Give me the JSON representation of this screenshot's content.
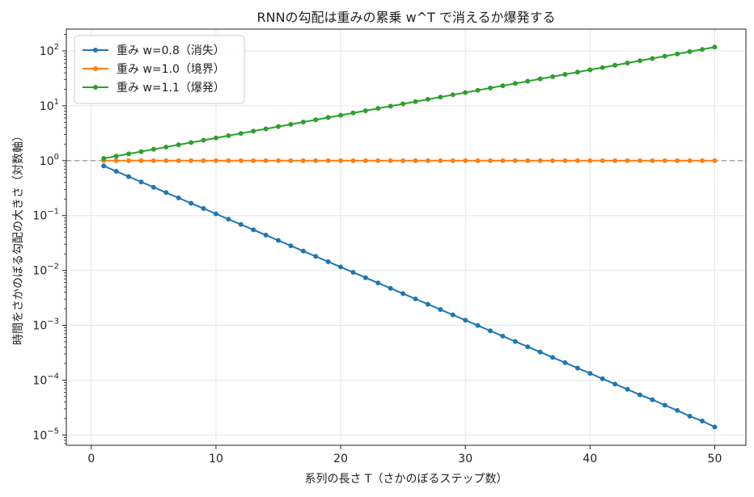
{
  "chart_data": {
    "type": "line",
    "title": "RNNの勾配は重みの累乗 w^T で消えるか爆発する",
    "xlabel": "系列の長さ T（さかのぼるステップ数）",
    "ylabel": "時間をさかのぼる勾配の大きさ（対数軸）",
    "xscale": "linear",
    "yscale": "log",
    "xlim": [
      -2,
      52.5
    ],
    "ylim": [
      6.5e-06,
      250
    ],
    "xticks": [
      0,
      10,
      20,
      30,
      40,
      50
    ],
    "xtick_labels": [
      "0",
      "10",
      "20",
      "30",
      "40",
      "50"
    ],
    "yticks": [
      1e-05,
      0.0001,
      0.001,
      0.01,
      0.1,
      1,
      10,
      100
    ],
    "ytick_labels": [
      {
        "base": "10",
        "exp": "−5"
      },
      {
        "base": "10",
        "exp": "−4"
      },
      {
        "base": "10",
        "exp": "−3"
      },
      {
        "base": "10",
        "exp": "−2"
      },
      {
        "base": "10",
        "exp": "−1"
      },
      {
        "base": "10",
        "exp": "0"
      },
      {
        "base": "10",
        "exp": "1"
      },
      {
        "base": "10",
        "exp": "2"
      }
    ],
    "grid": true,
    "legend_position": "top-left",
    "reference_line": {
      "y": 1,
      "style": "dashed",
      "color": "#aaaaaa"
    },
    "x": [
      1,
      2,
      3,
      4,
      5,
      6,
      7,
      8,
      9,
      10,
      11,
      12,
      13,
      14,
      15,
      16,
      17,
      18,
      19,
      20,
      21,
      22,
      23,
      24,
      25,
      26,
      27,
      28,
      29,
      30,
      31,
      32,
      33,
      34,
      35,
      36,
      37,
      38,
      39,
      40,
      41,
      42,
      43,
      44,
      45,
      46,
      47,
      48,
      49,
      50
    ],
    "series": [
      {
        "name": "重み w=0.8（消失）",
        "base": 0.8,
        "color": "#1f77b4",
        "values": [
          0.8,
          0.64,
          0.512,
          0.4096,
          0.32768,
          0.262144,
          0.209715,
          0.167772,
          0.134218,
          0.107374,
          0.085899,
          0.068719,
          0.054976,
          0.04398,
          0.035184,
          0.028147,
          0.022518,
          0.018014,
          0.014412,
          0.011529,
          0.009223,
          0.007379,
          0.005903,
          0.004722,
          0.003778,
          0.003022,
          0.002418,
          0.001934,
          0.001547,
          0.001238,
          0.00099,
          0.000792,
          0.000634,
          0.000507,
          0.000406,
          0.000325,
          0.00026,
          0.000208,
          0.000166,
          0.000133,
          0.000106,
          8.5e-05,
          6.8e-05,
          5.4e-05,
          4.4e-05,
          3.5e-05,
          2.8e-05,
          2.2e-05,
          1.8e-05,
          1.4e-05
        ]
      },
      {
        "name": "重み w=1.0（境界）",
        "base": 1.0,
        "color": "#ff7f0e",
        "values": [
          1,
          1,
          1,
          1,
          1,
          1,
          1,
          1,
          1,
          1,
          1,
          1,
          1,
          1,
          1,
          1,
          1,
          1,
          1,
          1,
          1,
          1,
          1,
          1,
          1,
          1,
          1,
          1,
          1,
          1,
          1,
          1,
          1,
          1,
          1,
          1,
          1,
          1,
          1,
          1,
          1,
          1,
          1,
          1,
          1,
          1,
          1,
          1,
          1,
          1
        ]
      },
      {
        "name": "重み w=1.1（爆発）",
        "base": 1.1,
        "color": "#2ca02c",
        "values": [
          1.1,
          1.21,
          1.331,
          1.4641,
          1.61051,
          1.771561,
          1.948717,
          2.143589,
          2.357948,
          2.593742,
          2.853117,
          3.138428,
          3.452271,
          3.797498,
          4.177248,
          4.594973,
          5.05447,
          5.559917,
          6.115909,
          6.7275,
          7.40025,
          8.140275,
          8.954302,
          9.849733,
          10.834706,
          11.918177,
          13.109994,
          14.420994,
          15.863093,
          17.449402,
          19.194342,
          21.113777,
          23.225154,
          25.54767,
          28.102437,
          30.912681,
          34.003949,
          37.404343,
          41.144778,
          45.259256,
          49.785181,
          54.763699,
          60.240069,
          66.264076,
          72.890484,
          80.179532,
          88.197485,
          97.017234,
          106.718957,
          117.390853
        ]
      }
    ]
  }
}
